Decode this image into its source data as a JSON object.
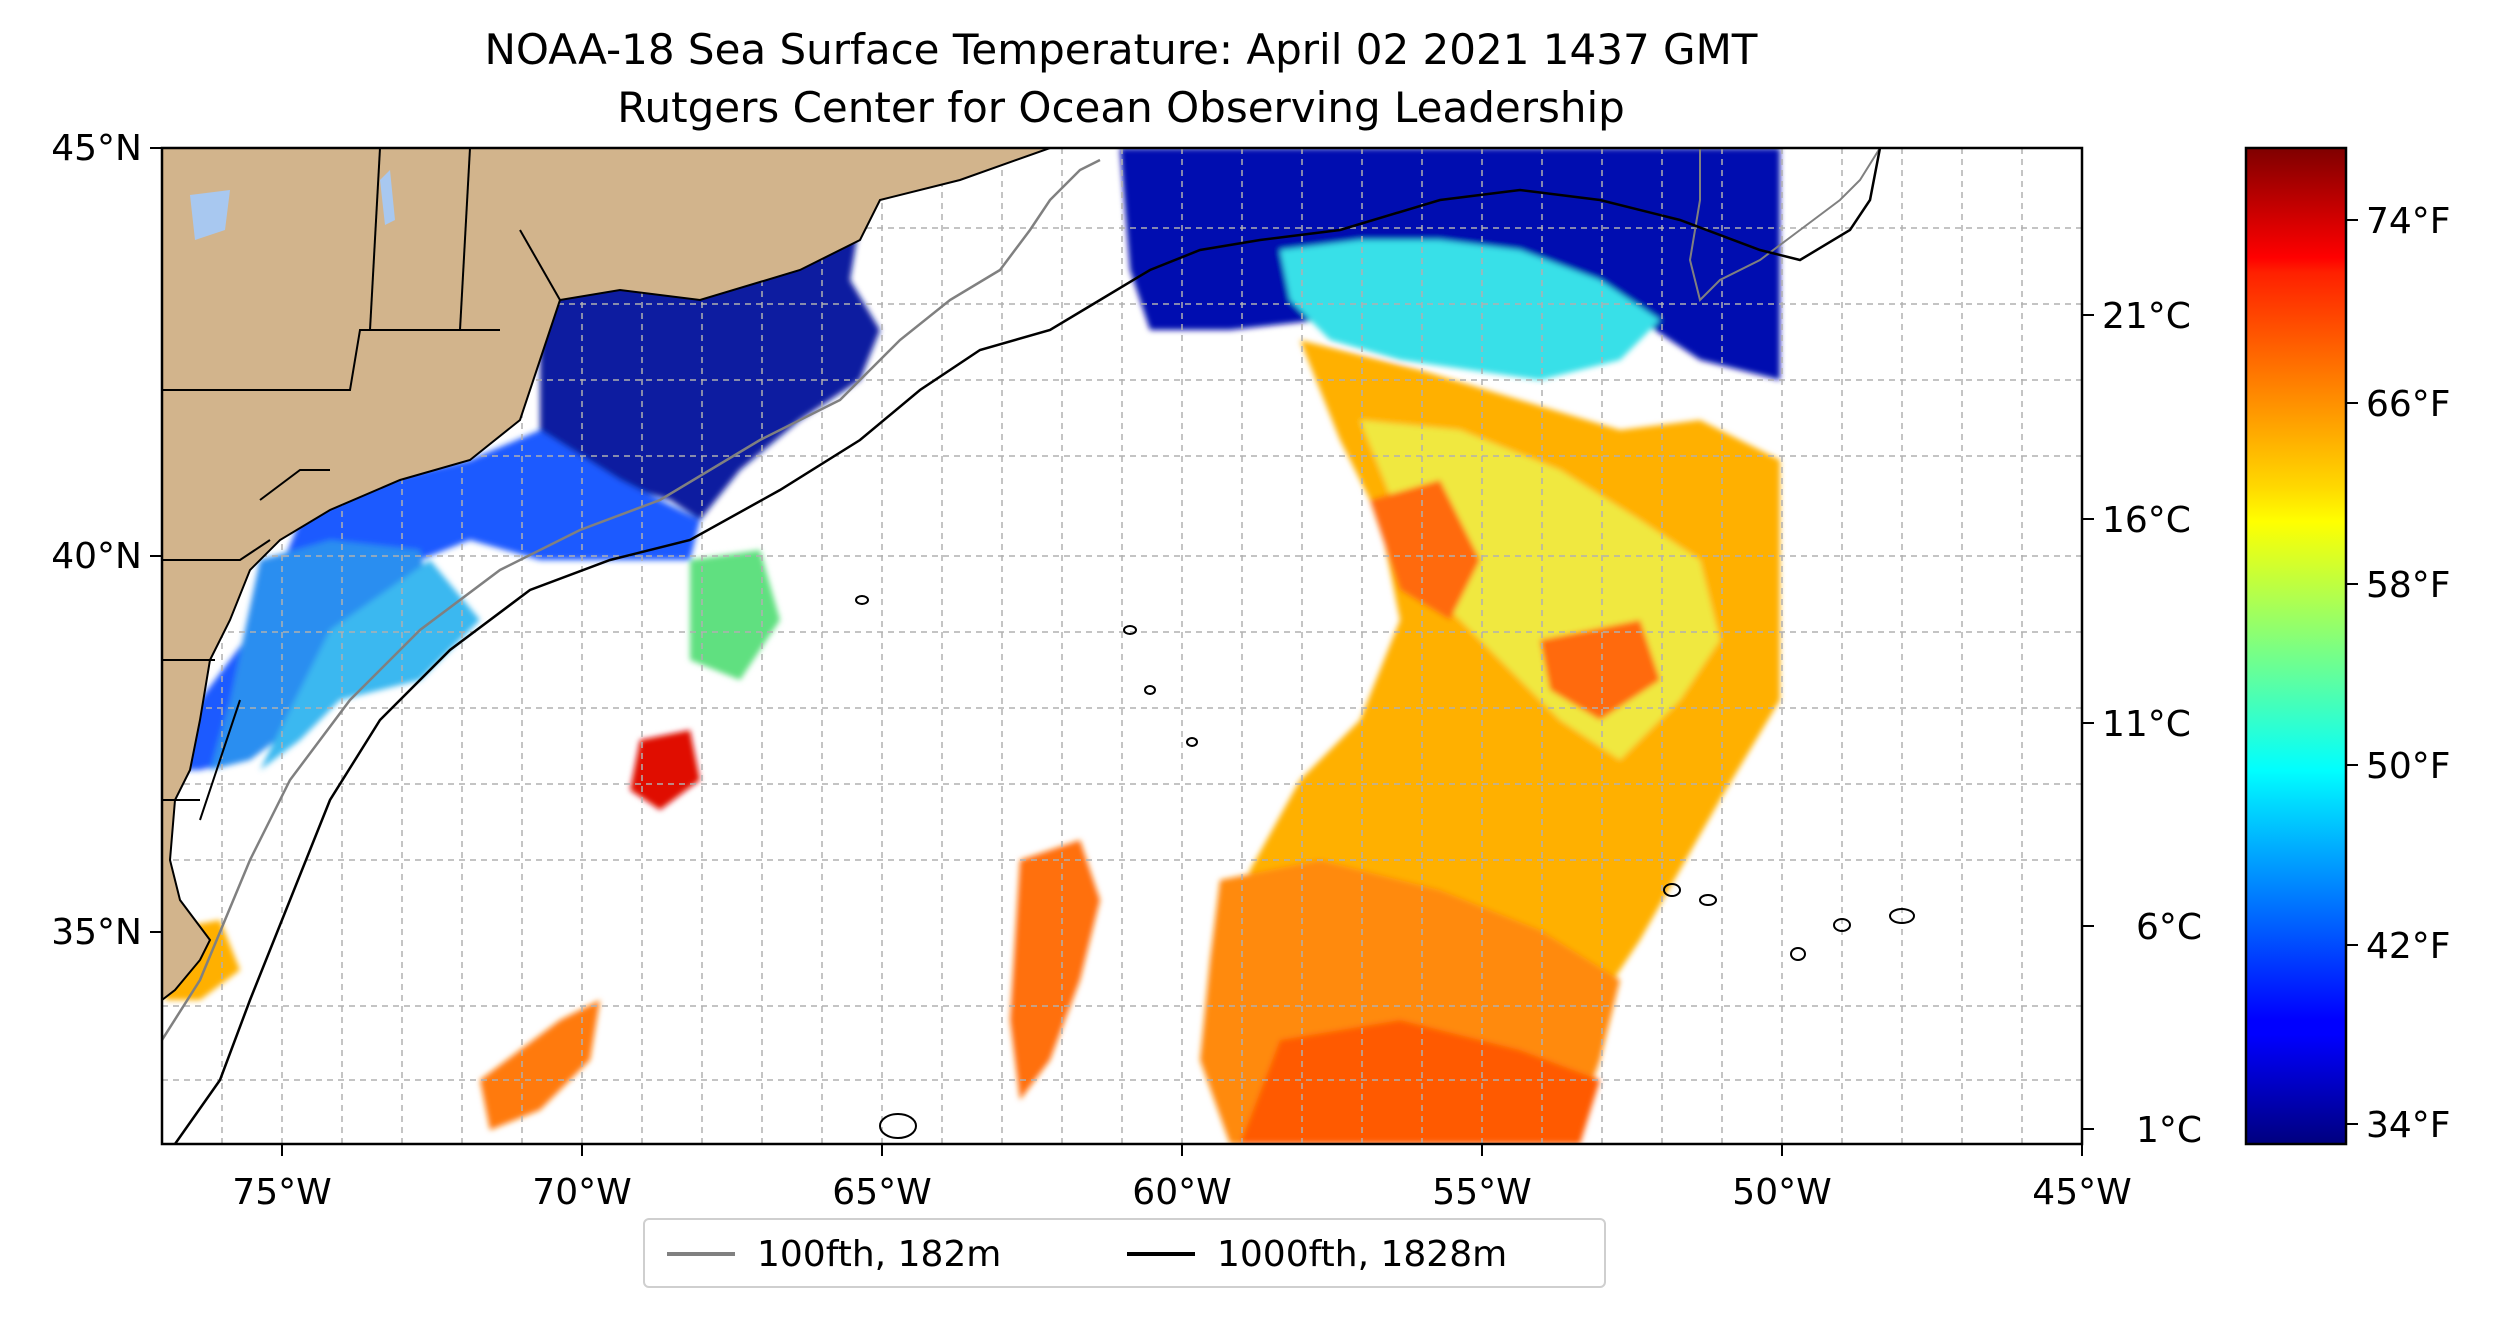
{
  "title": {
    "line1": "NOAA-18 Sea Surface Temperature: April 02 2021 1437 GMT",
    "line2": "Rutgers Center for Ocean Observing Leadership"
  },
  "map": {
    "lon_range": [
      -77,
      -45
    ],
    "lat_range": [
      32.2,
      45
    ],
    "lon_ticks": [
      "75°W",
      "70°W",
      "65°W",
      "60°W",
      "55°W",
      "50°W",
      "45°W"
    ],
    "lat_ticks": [
      "45°N",
      "40°N",
      "35°N"
    ],
    "gridlines": "dashed",
    "land_color": "#d2b48c",
    "land_border_color": "#000000",
    "lake_color": "#a8c8f0",
    "no_data_color": "#ffffff",
    "isobath_100_color": "#808080",
    "isobath_1000_color": "#000000"
  },
  "colorbar": {
    "colormap": "jet",
    "celsius_ticks": [
      "21°C",
      "16°C",
      "11°C",
      "6°C",
      "1°C"
    ],
    "fahrenheit_ticks": [
      "74°F",
      "66°F",
      "58°F",
      "50°F",
      "42°F",
      "34°F"
    ]
  },
  "legend": {
    "items": [
      {
        "label": "100fth, 182m",
        "color": "#808080"
      },
      {
        "label": "1000fth, 1828m",
        "color": "#000000"
      }
    ]
  }
}
